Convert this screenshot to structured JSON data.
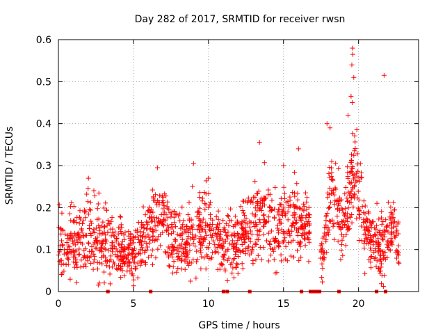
{
  "chart_data": {
    "type": "scatter",
    "title": "Day 282 of 2017, SRMTID for receiver rwsn",
    "xlabel": "GPS time / hours",
    "ylabel": "SRMTID / TECUs",
    "xlim": [
      0,
      24
    ],
    "ylim": [
      0,
      0.6
    ],
    "x_ticks": [
      0,
      5,
      10,
      15,
      20
    ],
    "x_tick_labels": [
      "0",
      "5",
      "10",
      "15",
      "20"
    ],
    "y_ticks": [
      0,
      0.1,
      0.2,
      0.3,
      0.4,
      0.5,
      0.6
    ],
    "y_tick_labels": [
      "0",
      "0.1",
      "0.2",
      "0.3",
      "0.4",
      "0.5",
      "0.6"
    ],
    "grid": true,
    "marker": "plus",
    "series_color": "#ff0000",
    "grid_color": "#a0a0a0",
    "data_extent": [
      0,
      22.7
    ],
    "envelope": [
      {
        "x": 0.0,
        "mean": 0.11,
        "spread": 0.05
      },
      {
        "x": 1.0,
        "mean": 0.11,
        "spread": 0.05
      },
      {
        "x": 2.0,
        "mean": 0.13,
        "spread": 0.06
      },
      {
        "x": 3.0,
        "mean": 0.12,
        "spread": 0.05
      },
      {
        "x": 4.0,
        "mean": 0.11,
        "spread": 0.05
      },
      {
        "x": 5.0,
        "mean": 0.08,
        "spread": 0.04
      },
      {
        "x": 6.0,
        "mean": 0.15,
        "spread": 0.05
      },
      {
        "x": 6.8,
        "mean": 0.17,
        "spread": 0.06
      },
      {
        "x": 8.0,
        "mean": 0.11,
        "spread": 0.05
      },
      {
        "x": 9.0,
        "mean": 0.13,
        "spread": 0.06
      },
      {
        "x": 10.0,
        "mean": 0.16,
        "spread": 0.06
      },
      {
        "x": 11.0,
        "mean": 0.11,
        "spread": 0.05
      },
      {
        "x": 12.0,
        "mean": 0.12,
        "spread": 0.05
      },
      {
        "x": 13.5,
        "mean": 0.19,
        "spread": 0.06
      },
      {
        "x": 14.5,
        "mean": 0.13,
        "spread": 0.06
      },
      {
        "x": 15.5,
        "mean": 0.17,
        "spread": 0.06
      },
      {
        "x": 16.5,
        "mean": 0.15,
        "spread": 0.05
      },
      {
        "x": 17.6,
        "mean": 0.08,
        "spread": 0.03
      },
      {
        "x": 18.2,
        "mean": 0.24,
        "spread": 0.07
      },
      {
        "x": 19.0,
        "mean": 0.15,
        "spread": 0.05
      },
      {
        "x": 19.7,
        "mean": 0.29,
        "spread": 0.08
      },
      {
        "x": 20.5,
        "mean": 0.14,
        "spread": 0.05
      },
      {
        "x": 21.5,
        "mean": 0.1,
        "spread": 0.05
      },
      {
        "x": 22.4,
        "mean": 0.16,
        "spread": 0.05
      },
      {
        "x": 22.7,
        "mean": 0.1,
        "spread": 0.04
      }
    ],
    "peaks": [
      {
        "x": 9.0,
        "y": 0.305
      },
      {
        "x": 10.0,
        "y": 0.27
      },
      {
        "x": 13.4,
        "y": 0.355
      },
      {
        "x": 15.0,
        "y": 0.3
      },
      {
        "x": 16.0,
        "y": 0.34
      },
      {
        "x": 17.9,
        "y": 0.4
      },
      {
        "x": 18.1,
        "y": 0.39
      },
      {
        "x": 19.3,
        "y": 0.42
      },
      {
        "x": 19.6,
        "y": 0.58
      },
      {
        "x": 19.62,
        "y": 0.565
      },
      {
        "x": 19.55,
        "y": 0.54
      },
      {
        "x": 19.68,
        "y": 0.51
      },
      {
        "x": 19.5,
        "y": 0.465
      },
      {
        "x": 19.58,
        "y": 0.45
      },
      {
        "x": 21.7,
        "y": 0.515
      },
      {
        "x": 6.6,
        "y": 0.295
      },
      {
        "x": 2.0,
        "y": 0.27
      }
    ],
    "zero_markers_x": [
      3.3,
      6.15,
      11.0,
      11.25,
      12.75,
      16.2,
      16.8,
      16.95,
      17.1,
      17.25,
      17.4,
      18.7,
      21.2,
      21.8
    ]
  }
}
